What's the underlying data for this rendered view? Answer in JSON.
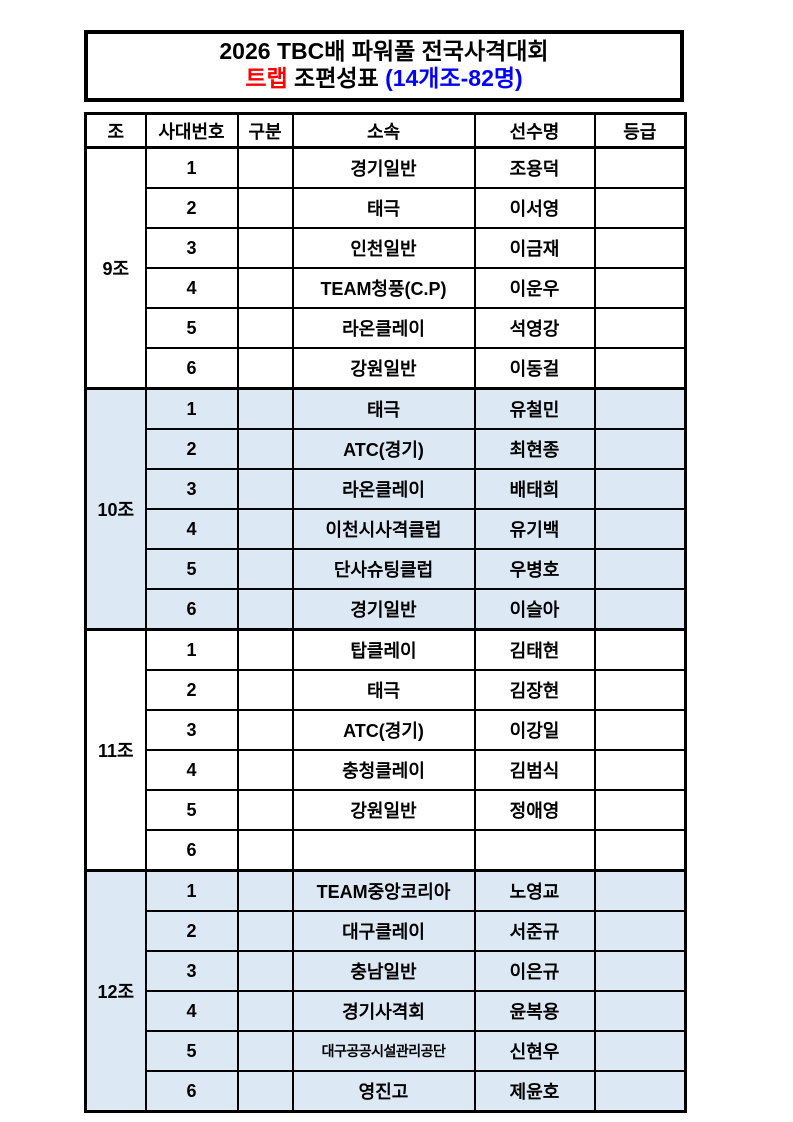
{
  "title": {
    "line1": "2026 TBC배 파워풀 전국사격대회",
    "line2_event": "트랩",
    "line2_label": "조편성표",
    "line2_count": "(14개조-82명)"
  },
  "colors": {
    "event_red": "#ff0000",
    "count_blue": "#0000ff",
    "highlight_row": "#dce9f5",
    "border": "#000000"
  },
  "table": {
    "headers": [
      "조",
      "사대번호",
      "구분",
      "소속",
      "선수명",
      "등급"
    ],
    "groups": [
      {
        "name": "9조",
        "highlight": false,
        "rows": [
          {
            "no": "1",
            "gubun": "",
            "club": "경기일반",
            "player": "조용덕",
            "grade": ""
          },
          {
            "no": "2",
            "gubun": "",
            "club": "태극",
            "player": "이서영",
            "grade": ""
          },
          {
            "no": "3",
            "gubun": "",
            "club": "인천일반",
            "player": "이금재",
            "grade": ""
          },
          {
            "no": "4",
            "gubun": "",
            "club": "TEAM청풍(C.P)",
            "player": "이운우",
            "grade": ""
          },
          {
            "no": "5",
            "gubun": "",
            "club": "라온클레이",
            "player": "석영강",
            "grade": ""
          },
          {
            "no": "6",
            "gubun": "",
            "club": "강원일반",
            "player": "이동걸",
            "grade": ""
          }
        ]
      },
      {
        "name": "10조",
        "highlight": true,
        "rows": [
          {
            "no": "1",
            "gubun": "",
            "club": "태극",
            "player": "유철민",
            "grade": ""
          },
          {
            "no": "2",
            "gubun": "",
            "club": "ATC(경기)",
            "player": "최현종",
            "grade": ""
          },
          {
            "no": "3",
            "gubun": "",
            "club": "라온클레이",
            "player": "배태희",
            "grade": ""
          },
          {
            "no": "4",
            "gubun": "",
            "club": "이천시사격클럽",
            "player": "유기백",
            "grade": ""
          },
          {
            "no": "5",
            "gubun": "",
            "club": "단사슈팅클럽",
            "player": "우병호",
            "grade": ""
          },
          {
            "no": "6",
            "gubun": "",
            "club": "경기일반",
            "player": "이슬아",
            "grade": ""
          }
        ]
      },
      {
        "name": "11조",
        "highlight": false,
        "rows": [
          {
            "no": "1",
            "gubun": "",
            "club": "탑클레이",
            "player": "김태현",
            "grade": ""
          },
          {
            "no": "2",
            "gubun": "",
            "club": "태극",
            "player": "김장현",
            "grade": ""
          },
          {
            "no": "3",
            "gubun": "",
            "club": "ATC(경기)",
            "player": "이강일",
            "grade": ""
          },
          {
            "no": "4",
            "gubun": "",
            "club": "충청클레이",
            "player": "김범식",
            "grade": ""
          },
          {
            "no": "5",
            "gubun": "",
            "club": "강원일반",
            "player": "정애영",
            "grade": ""
          },
          {
            "no": "6",
            "gubun": "",
            "club": "",
            "player": "",
            "grade": ""
          }
        ]
      },
      {
        "name": "12조",
        "highlight": true,
        "rows": [
          {
            "no": "1",
            "gubun": "",
            "club": "TEAM중앙코리아",
            "player": "노영교",
            "grade": ""
          },
          {
            "no": "2",
            "gubun": "",
            "club": "대구클레이",
            "player": "서준규",
            "grade": ""
          },
          {
            "no": "3",
            "gubun": "",
            "club": "충남일반",
            "player": "이은규",
            "grade": ""
          },
          {
            "no": "4",
            "gubun": "",
            "club": "경기사격회",
            "player": "윤복용",
            "grade": ""
          },
          {
            "no": "5",
            "gubun": "",
            "club": "대구공공시설관리공단",
            "player": "신현우",
            "grade": ""
          },
          {
            "no": "6",
            "gubun": "",
            "club": "영진고",
            "player": "제윤호",
            "grade": ""
          }
        ]
      }
    ]
  }
}
